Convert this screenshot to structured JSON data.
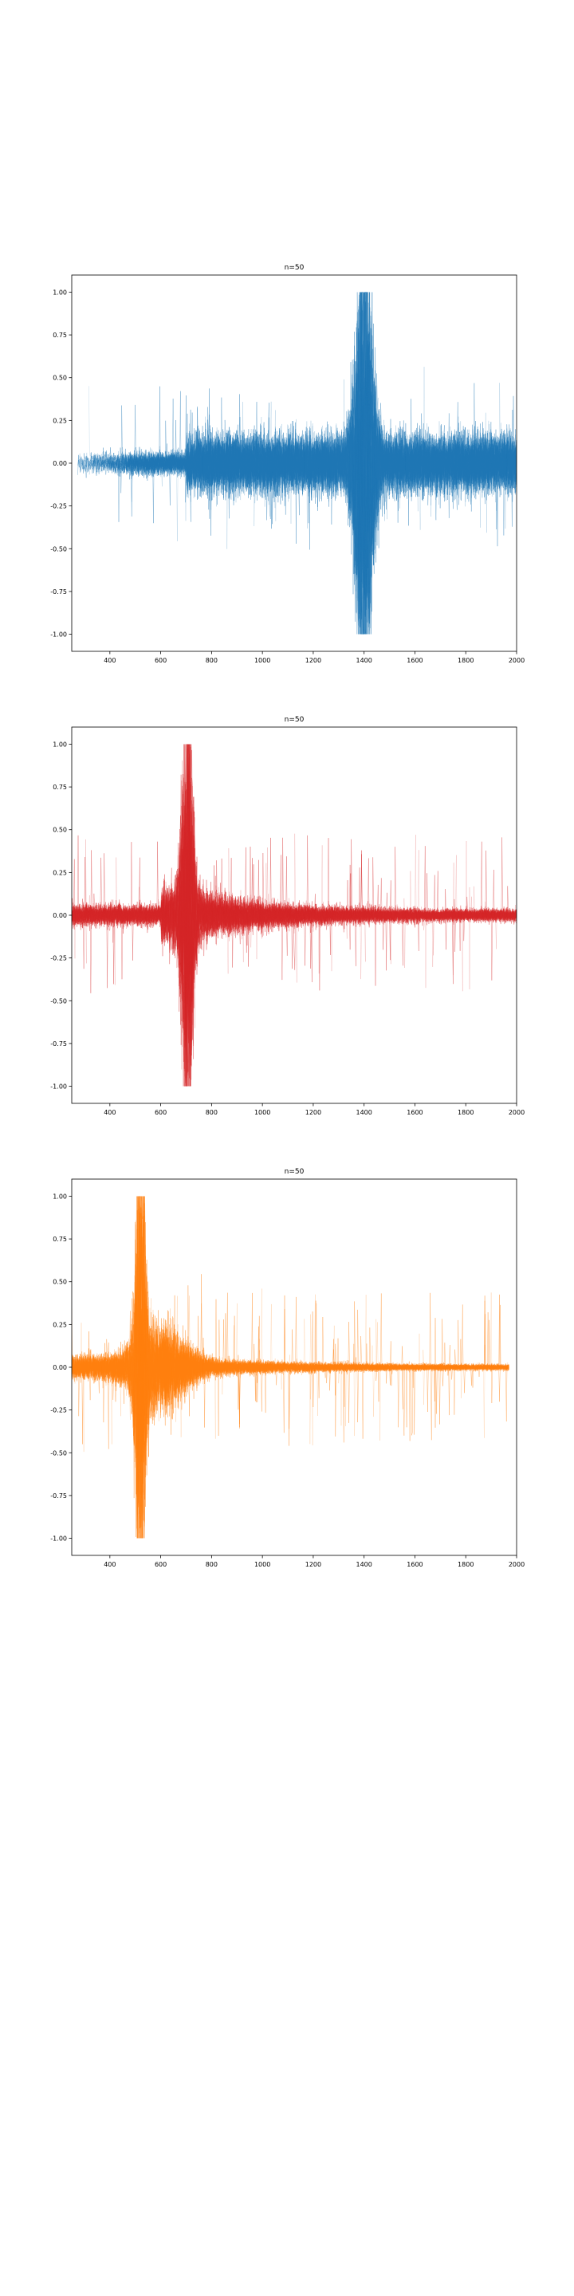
{
  "chart_data": [
    {
      "type": "line",
      "title": "n=50",
      "xlabel": "",
      "ylabel": "",
      "xlim": [
        250,
        2000
      ],
      "ylim": [
        -1.1,
        1.1
      ],
      "xticks": [
        400,
        600,
        800,
        1000,
        1200,
        1400,
        1600,
        1800,
        2000
      ],
      "yticks": [
        -1.0,
        -0.75,
        -0.5,
        -0.25,
        0.0,
        0.25,
        0.5,
        0.75,
        1.0
      ],
      "grid": false,
      "legend": "none",
      "color": "#1f77b4",
      "n_traces": 50,
      "signal_onset_x": 700,
      "peak_x": 1400,
      "peak_y_range": [
        -1.0,
        1.0
      ],
      "x_range_of_traces": [
        250,
        2000
      ]
    },
    {
      "type": "line",
      "title": "n=50",
      "xlabel": "",
      "ylabel": "",
      "xlim": [
        250,
        2000
      ],
      "ylim": [
        -1.1,
        1.1
      ],
      "xticks": [
        400,
        600,
        800,
        1000,
        1200,
        1400,
        1600,
        1800,
        2000
      ],
      "yticks": [
        -1.0,
        -0.75,
        -0.5,
        -0.25,
        0.0,
        0.25,
        0.5,
        0.75,
        1.0
      ],
      "grid": false,
      "legend": "none",
      "color": "#d62728",
      "n_traces": 50,
      "peak_x": 700,
      "peak_y_range": [
        -1.0,
        1.0
      ],
      "x_range_of_traces": [
        250,
        2000
      ]
    },
    {
      "type": "line",
      "title": "n=50",
      "xlabel": "",
      "ylabel": "",
      "xlim": [
        250,
        2000
      ],
      "ylim": [
        -1.1,
        1.1
      ],
      "xticks": [
        400,
        600,
        800,
        1000,
        1200,
        1400,
        1600,
        1800,
        2000
      ],
      "yticks": [
        -1.0,
        -0.75,
        -0.5,
        -0.25,
        0.0,
        0.25,
        0.5,
        0.75,
        1.0
      ],
      "grid": false,
      "legend": "none",
      "color": "#ff7f0e",
      "n_traces": 50,
      "peak_x": 520,
      "peak_y_range": [
        -1.0,
        1.0
      ],
      "x_range_of_traces": [
        250,
        1970
      ]
    }
  ]
}
